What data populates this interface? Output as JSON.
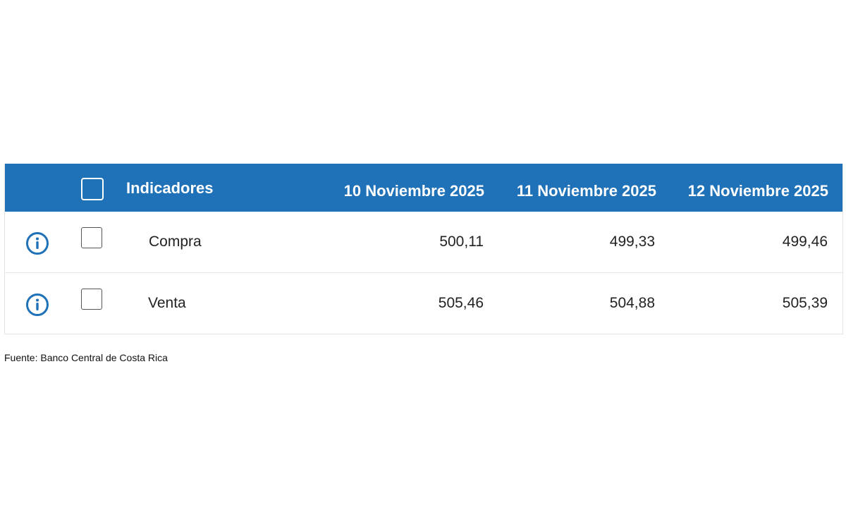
{
  "table": {
    "header": {
      "indicator_label": "Indicadores",
      "dates": [
        "10 Noviembre 2025",
        "11 Noviembre 2025",
        "12 Noviembre 2025"
      ]
    },
    "rows": [
      {
        "label": "Compra",
        "values": [
          "500,11",
          "499,33",
          "499,46"
        ]
      },
      {
        "label": "Venta",
        "values": [
          "505,46",
          "504,88",
          "505,39"
        ]
      }
    ]
  },
  "footer": {
    "source": "Fuente: Banco Central de Costa Rica"
  },
  "colors": {
    "header_bg": "#1f71b8",
    "icon": "#1f71b8"
  }
}
